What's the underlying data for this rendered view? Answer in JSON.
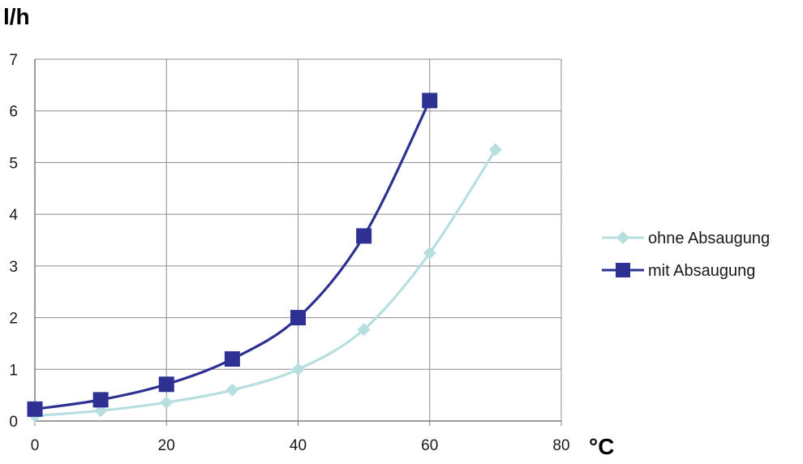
{
  "chart_data": {
    "type": "line",
    "title": "",
    "ylabel": "l/h",
    "xlabel": "°C",
    "xlim": [
      0,
      80
    ],
    "ylim": [
      0,
      7
    ],
    "x_ticks": [
      0,
      20,
      40,
      60,
      80
    ],
    "y_ticks": [
      0,
      1,
      2,
      3,
      4,
      5,
      6,
      7
    ],
    "grid": true,
    "legend_position": "right",
    "series": [
      {
        "name": "ohne Absaugung",
        "color": "#b7dfe0",
        "marker": "diamond",
        "x": [
          0,
          10,
          20,
          30,
          40,
          50,
          60,
          70
        ],
        "y": [
          0.1,
          0.2,
          0.36,
          0.6,
          1.0,
          1.77,
          3.25,
          5.25
        ]
      },
      {
        "name": "mit Absaugung",
        "color": "#2e3192",
        "marker": "square",
        "x": [
          0,
          10,
          20,
          30,
          40,
          50,
          60
        ],
        "y": [
          0.23,
          0.41,
          0.71,
          1.2,
          2.0,
          3.58,
          6.2
        ]
      }
    ]
  }
}
